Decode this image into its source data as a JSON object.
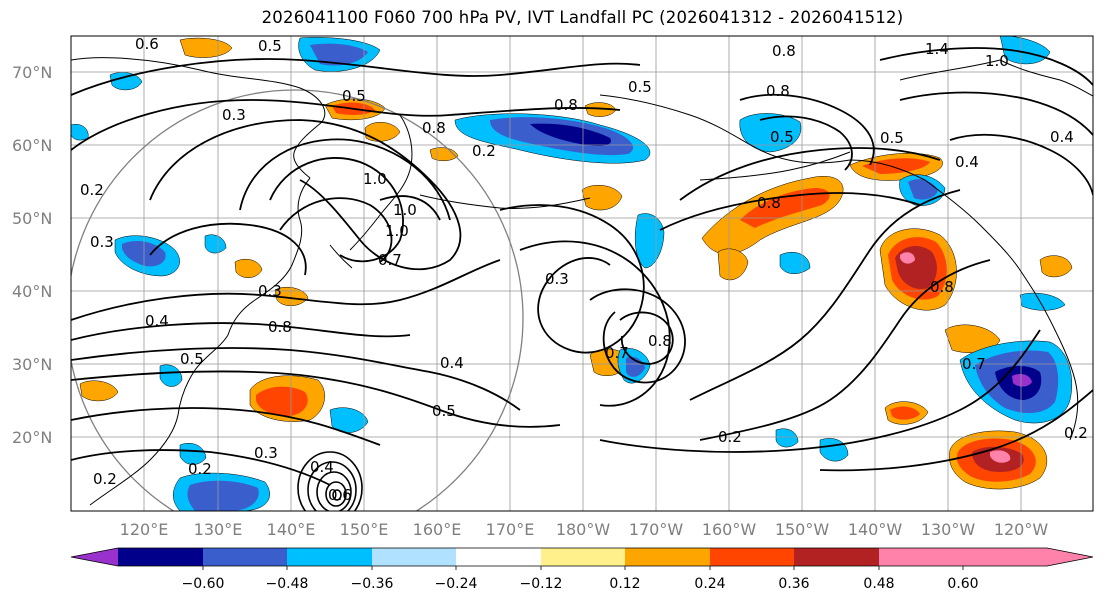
{
  "title": "2026041100 F060 700 hPa PV, IVT Landfall PC (2026041312 - 2026041512)",
  "map": {
    "lat_labels": [
      "70°N",
      "60°N",
      "50°N",
      "40°N",
      "30°N",
      "20°N"
    ],
    "lon_labels": [
      "120°E",
      "130°E",
      "140°E",
      "150°E",
      "160°E",
      "170°E",
      "180°W",
      "170°W",
      "160°W",
      "150°W",
      "140°W",
      "130°W",
      "120°W"
    ],
    "contour_labels": [
      "0.6",
      "0.5",
      "0.8",
      "1.4",
      "1.0",
      "0.3",
      "0.5",
      "0.8",
      "0.5",
      "0.8",
      "0.5",
      "0.8",
      "1.0",
      "0.2",
      "0.2",
      "0.3",
      "1.0",
      "1.0",
      "0.7",
      "0.3",
      "0.8",
      "0.4",
      "0.3",
      "0.4",
      "0.8",
      "0.5",
      "0.7",
      "0.8",
      "0.4",
      "0.5",
      "0.7",
      "0.2",
      "0.2",
      "0.2",
      "0.3",
      "0.4",
      "0.6",
      "0.8",
      "0.5",
      "0.4",
      "0.2"
    ]
  },
  "colorbar": {
    "ticks": [
      "−0.60",
      "−0.48",
      "−0.36",
      "−0.24",
      "−0.12",
      "0.12",
      "0.24",
      "0.36",
      "0.48",
      "0.60"
    ],
    "colors": [
      "#9932cc",
      "#00008b",
      "#3a5fcd",
      "#00bfff",
      "#b0e2ff",
      "#ffffff",
      "#fff08c",
      "#ffa500",
      "#ff4500",
      "#b22222",
      "#ff82ab"
    ]
  }
}
